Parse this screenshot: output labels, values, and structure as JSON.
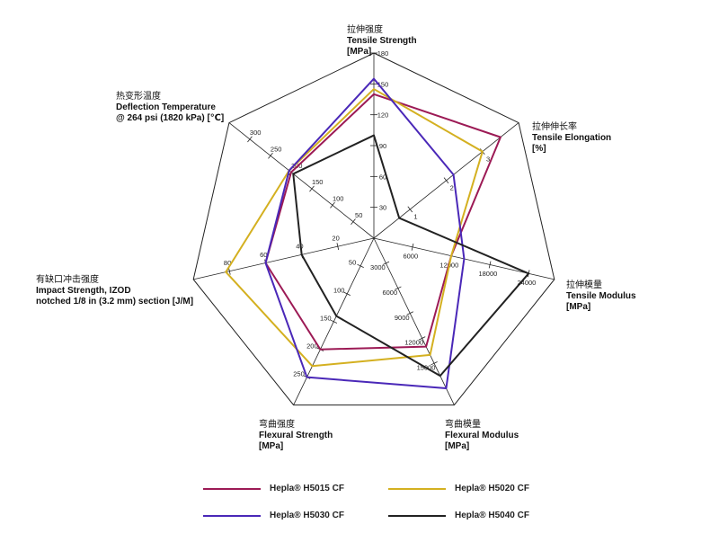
{
  "chart_data": {
    "type": "radar",
    "axes": [
      {
        "cn": "拉伸强度",
        "name": "Tensile Strength",
        "unit": "[MPa]",
        "min": 0,
        "max": 180,
        "ticks": [
          30,
          60,
          90,
          120,
          150,
          180
        ]
      },
      {
        "cn": "拉伸伸长率",
        "name": "Tensile Elongation",
        "unit": "[%]",
        "min": 0,
        "max": 4,
        "ticks": [
          1,
          2,
          3
        ]
      },
      {
        "cn": "拉伸模量",
        "name": "Tensile Modulus",
        "unit": "[MPa]",
        "min": 0,
        "max": 28000,
        "ticks": [
          6000,
          12000,
          18000,
          24000
        ]
      },
      {
        "cn": "弯曲模量",
        "name": "Flexural Modulus",
        "unit": "[MPa]",
        "min": 0,
        "max": 20000,
        "ticks": [
          3000,
          6000,
          9000,
          12000,
          15000
        ]
      },
      {
        "cn": "弯曲强度",
        "name": "Flexural Strength",
        "unit": "[MPa]",
        "min": 0,
        "max": 300,
        "ticks": [
          50,
          100,
          150,
          200,
          250
        ]
      },
      {
        "cn": "有缺口冲击强度",
        "name": "Impact Strength, IZOD",
        "name2": "notched 1/8 in (3.2 mm) section [J/M]",
        "unit": "",
        "min": 0,
        "max": 100,
        "ticks": [
          20,
          40,
          60,
          80
        ]
      },
      {
        "cn": "热变形温度",
        "name": "Deflection Temperature",
        "name2": "@ 264 psi (1820 kPa) [℃]",
        "unit": "",
        "min": 0,
        "max": 350,
        "ticks": [
          50,
          100,
          150,
          200,
          250,
          300
        ]
      }
    ],
    "series": [
      {
        "name": "Hepla® H5015 CF",
        "color": "#9c1a55",
        "values": [
          140,
          3.5,
          12000,
          13000,
          200,
          60,
          200
        ]
      },
      {
        "name": "Hepla® H5020 CF",
        "color": "#d4b020",
        "values": [
          145,
          3.0,
          12000,
          14000,
          230,
          82,
          205
        ]
      },
      {
        "name": "Hepla® H5030 CF",
        "color": "#4a28b8",
        "values": [
          155,
          2.2,
          14000,
          18000,
          250,
          60,
          205
        ]
      },
      {
        "name": "Hepla® H5040 CF",
        "color": "#222222",
        "values": [
          100,
          0.7,
          24000,
          16500,
          140,
          40,
          195
        ]
      }
    ],
    "legend_position": "bottom",
    "grid": true
  }
}
